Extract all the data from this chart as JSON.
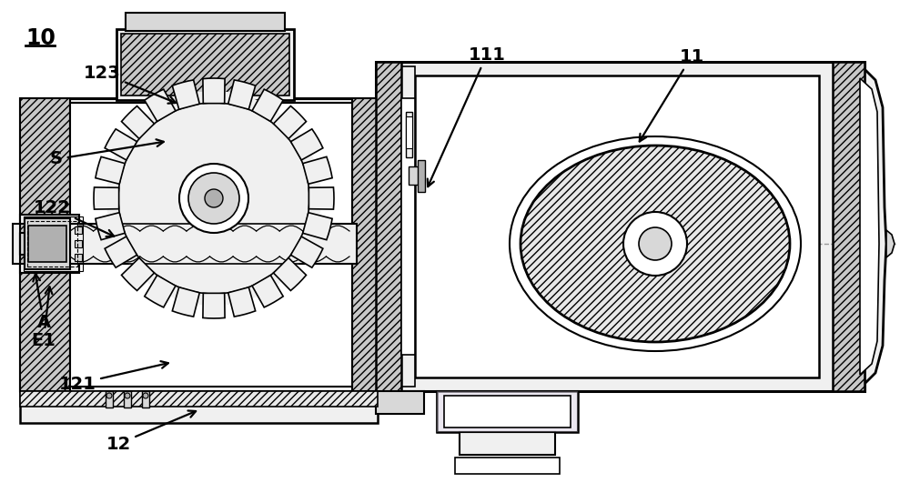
{
  "background_color": "#ffffff",
  "label_10": "10",
  "label_11": "11",
  "label_111": "111",
  "label_12": "12",
  "label_121": "121",
  "label_122": "122",
  "label_123": "123",
  "label_S": "S",
  "label_A": "A",
  "label_E1": "E1",
  "fig_width": 10.0,
  "fig_height": 5.42,
  "dpi": 100
}
